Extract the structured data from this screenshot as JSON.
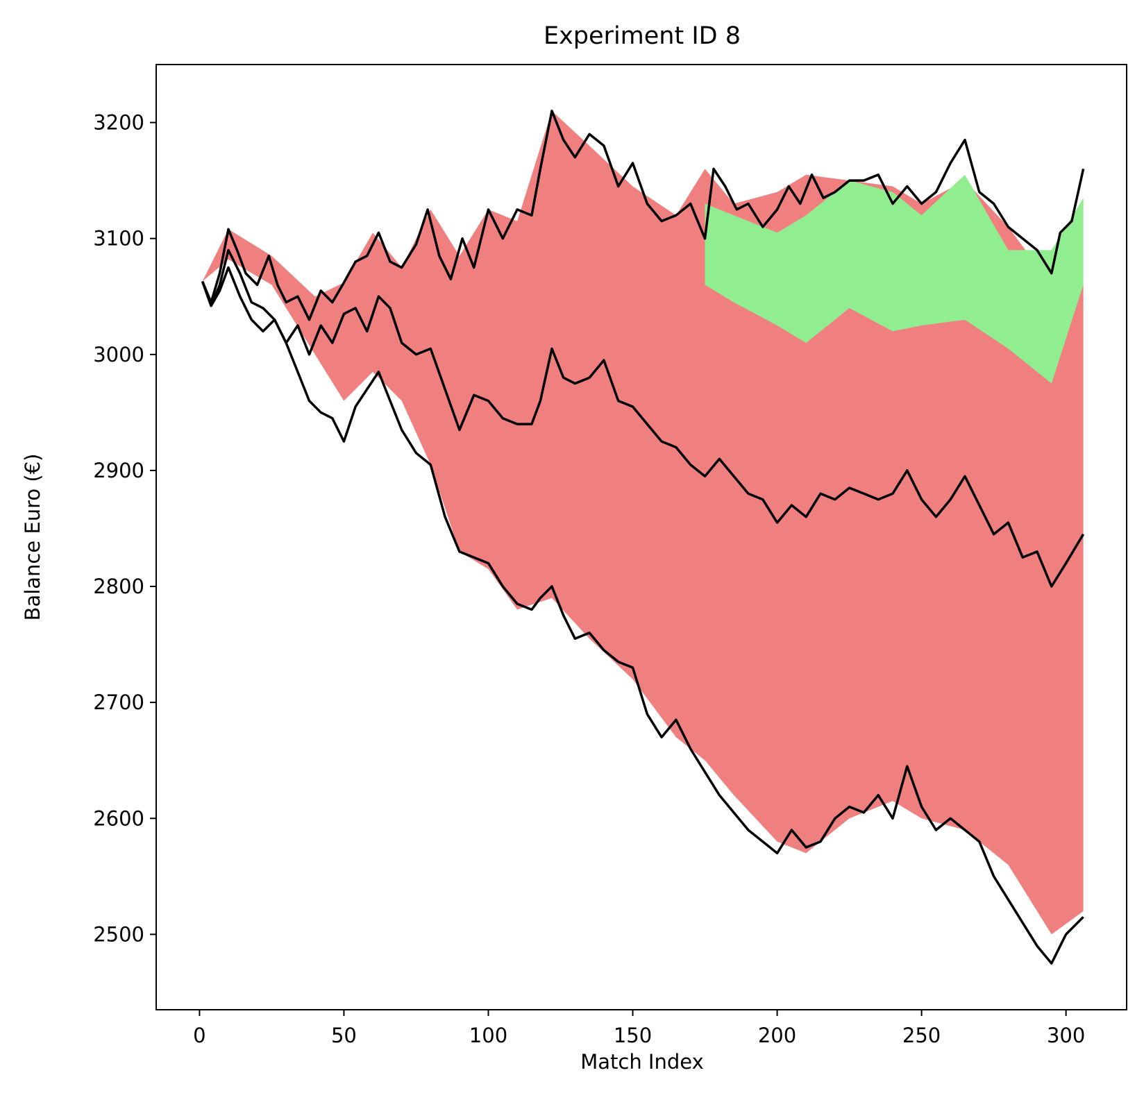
{
  "chart_data": {
    "type": "line",
    "title": "Experiment ID 8",
    "xlabel": "Match Index",
    "ylabel": "Balance Euro (€)",
    "xlim": [
      -15,
      321
    ],
    "ylim": [
      2435,
      3250
    ],
    "xticks": [
      0,
      50,
      100,
      150,
      200,
      250,
      300
    ],
    "yticks": [
      2500,
      2600,
      2700,
      2800,
      2900,
      3000,
      3100,
      3200
    ],
    "grid": false,
    "legend": "none",
    "colors": {
      "loss": "#f08080",
      "gain": "#90ee90",
      "envelope": "#000000"
    },
    "bands": [
      {
        "color": "#f08080",
        "x": [
          1,
          10,
          25,
          40,
          50,
          60,
          70,
          80,
          90,
          100,
          110,
          122,
          135,
          150,
          165,
          175,
          185,
          200,
          210,
          225,
          240,
          250,
          265,
          280,
          295,
          306
        ],
        "upper": [
          3063,
          3108,
          3085,
          3050,
          3062,
          3105,
          3075,
          3125,
          3085,
          3125,
          3115,
          3210,
          3180,
          3145,
          3120,
          3160,
          3130,
          3140,
          3155,
          3150,
          3145,
          3130,
          3150,
          3110,
          3060,
          3060
        ],
        "lower": [
          3063,
          3082,
          3060,
          3000,
          2960,
          2985,
          2960,
          2905,
          2830,
          2815,
          2780,
          2790,
          2755,
          2720,
          2670,
          2650,
          2620,
          2580,
          2570,
          2600,
          2615,
          2600,
          2590,
          2560,
          2500,
          2520
        ]
      },
      {
        "color": "#90ee90",
        "x": [
          175,
          185,
          200,
          210,
          225,
          240,
          250,
          265,
          280,
          295,
          306
        ],
        "upper": [
          3130,
          3120,
          3105,
          3120,
          3150,
          3140,
          3120,
          3155,
          3090,
          3090,
          3135
        ],
        "lower": [
          3060,
          3045,
          3025,
          3010,
          3040,
          3020,
          3025,
          3030,
          3005,
          2975,
          3060
        ]
      }
    ],
    "series": [
      {
        "color": "#000000",
        "x": [
          1,
          4,
          7,
          10,
          13,
          16,
          20,
          24,
          27,
          30,
          34,
          38,
          42,
          46,
          50,
          54,
          58,
          62,
          66,
          70,
          75,
          79,
          83,
          87,
          91,
          95,
          100,
          105,
          110,
          115,
          118,
          122,
          126,
          130,
          135,
          140,
          145,
          150,
          155,
          160,
          165,
          170,
          175,
          178,
          182,
          186,
          190,
          195,
          200,
          204,
          208,
          212,
          216,
          220,
          225,
          230,
          235,
          240,
          245,
          250,
          255,
          260,
          265,
          270,
          275,
          280,
          285,
          290,
          295,
          298,
          302,
          306
        ],
        "y": [
          3063,
          3045,
          3070,
          3108,
          3090,
          3070,
          3060,
          3085,
          3060,
          3045,
          3050,
          3030,
          3055,
          3045,
          3062,
          3080,
          3085,
          3105,
          3080,
          3075,
          3095,
          3125,
          3085,
          3065,
          3100,
          3075,
          3125,
          3100,
          3125,
          3120,
          3160,
          3210,
          3185,
          3170,
          3190,
          3180,
          3145,
          3165,
          3130,
          3115,
          3120,
          3130,
          3100,
          3160,
          3145,
          3125,
          3130,
          3110,
          3125,
          3145,
          3130,
          3155,
          3135,
          3140,
          3150,
          3150,
          3155,
          3130,
          3145,
          3130,
          3140,
          3165,
          3185,
          3140,
          3130,
          3110,
          3100,
          3090,
          3070,
          3105,
          3115,
          3160
        ]
      },
      {
        "color": "#000000",
        "x": [
          1,
          4,
          7,
          10,
          14,
          18,
          22,
          26,
          30,
          34,
          38,
          42,
          46,
          50,
          54,
          58,
          62,
          66,
          70,
          75,
          80,
          85,
          90,
          95,
          100,
          105,
          110,
          115,
          118,
          122,
          126,
          130,
          135,
          140,
          145,
          150,
          155,
          160,
          165,
          170,
          175,
          180,
          185,
          190,
          195,
          200,
          205,
          210,
          215,
          220,
          225,
          230,
          235,
          240,
          245,
          250,
          255,
          260,
          265,
          270,
          275,
          280,
          285,
          290,
          295,
          300,
          306
        ],
        "y": [
          3063,
          3042,
          3060,
          3090,
          3070,
          3045,
          3040,
          3030,
          3010,
          3025,
          3000,
          3025,
          3010,
          3035,
          3040,
          3020,
          3050,
          3040,
          3010,
          3000,
          3005,
          2970,
          2935,
          2965,
          2960,
          2945,
          2940,
          2940,
          2960,
          3005,
          2980,
          2975,
          2980,
          2995,
          2960,
          2955,
          2940,
          2925,
          2920,
          2905,
          2895,
          2910,
          2895,
          2880,
          2875,
          2855,
          2870,
          2860,
          2880,
          2875,
          2885,
          2880,
          2875,
          2880,
          2900,
          2875,
          2860,
          2875,
          2895,
          2870,
          2845,
          2855,
          2825,
          2830,
          2800,
          2820,
          2845
        ]
      },
      {
        "color": "#000000",
        "x": [
          1,
          4,
          7,
          10,
          14,
          18,
          22,
          26,
          30,
          34,
          38,
          42,
          46,
          50,
          54,
          58,
          62,
          66,
          70,
          75,
          80,
          85,
          90,
          95,
          100,
          105,
          110,
          115,
          118,
          122,
          126,
          130,
          135,
          140,
          145,
          150,
          155,
          160,
          165,
          170,
          175,
          180,
          185,
          190,
          195,
          200,
          205,
          210,
          215,
          220,
          225,
          230,
          235,
          240,
          245,
          250,
          255,
          260,
          265,
          270,
          275,
          280,
          285,
          290,
          295,
          300,
          306
        ],
        "y": [
          3063,
          3042,
          3055,
          3075,
          3050,
          3030,
          3020,
          3030,
          3010,
          2985,
          2960,
          2950,
          2945,
          2925,
          2955,
          2970,
          2985,
          2960,
          2935,
          2915,
          2905,
          2860,
          2830,
          2825,
          2820,
          2800,
          2785,
          2780,
          2790,
          2800,
          2775,
          2755,
          2760,
          2745,
          2735,
          2730,
          2690,
          2670,
          2685,
          2660,
          2640,
          2620,
          2605,
          2590,
          2580,
          2570,
          2590,
          2575,
          2580,
          2600,
          2610,
          2605,
          2620,
          2600,
          2645,
          2610,
          2590,
          2600,
          2590,
          2580,
          2550,
          2530,
          2510,
          2490,
          2475,
          2500,
          2515
        ]
      }
    ]
  }
}
